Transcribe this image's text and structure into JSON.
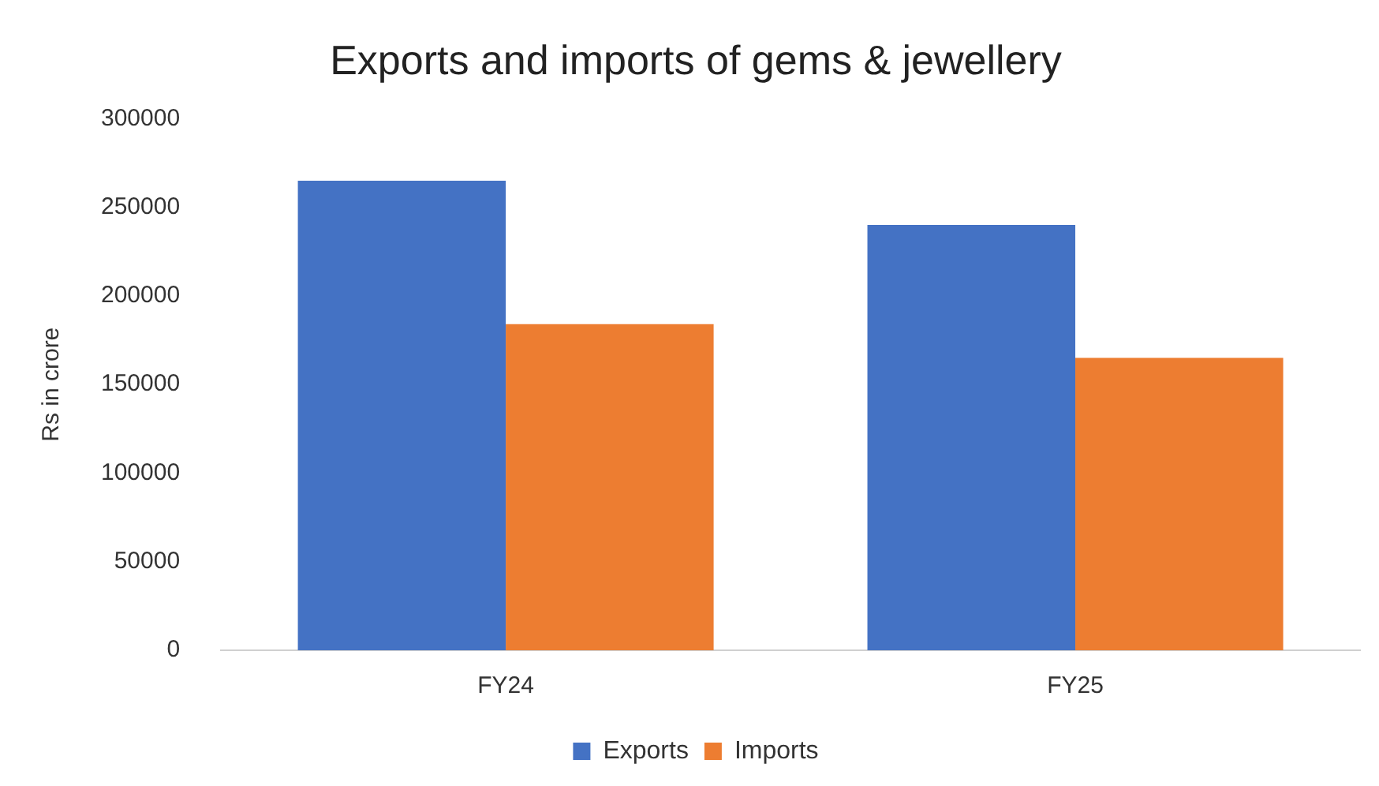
{
  "chart_data": {
    "type": "bar",
    "title": "Exports and imports of gems & jewellery",
    "ylabel": "Rs in crore",
    "categories": [
      "FY24",
      "FY25"
    ],
    "series": [
      {
        "name": "Exports",
        "color": "#4472c4",
        "values": [
          265000,
          240000
        ]
      },
      {
        "name": "Imports",
        "color": "#ed7d31",
        "values": [
          184000,
          165000
        ]
      }
    ],
    "ylim": [
      0,
      300000
    ],
    "yticks": [
      0,
      50000,
      100000,
      150000,
      200000,
      250000,
      300000
    ],
    "grid": false,
    "legend": "bottom"
  }
}
